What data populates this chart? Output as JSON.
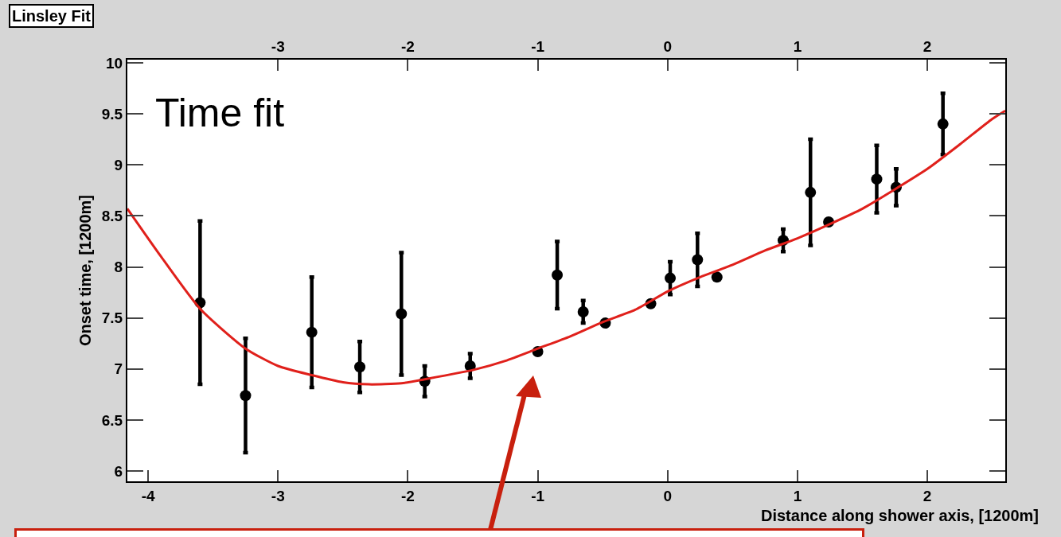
{
  "chart_data": {
    "type": "scatter",
    "title": "Linsley Fit",
    "xlabel": "Distance along shower axis, [1200m]",
    "ylabel": "Onset time, [1200m]",
    "annotations": [
      "Time fit"
    ],
    "xlim": [
      -4.16,
      2.6
    ],
    "xticks": [
      -4,
      -3,
      -2,
      -1,
      0,
      1,
      2
    ],
    "x2lim": [
      -4.16,
      2.6
    ],
    "x2ticks": [
      -3,
      -2,
      -1,
      0,
      1,
      2
    ],
    "ylim": [
      5.9,
      10.03
    ],
    "yticks": [
      6,
      6.5,
      7,
      7.5,
      8,
      8.5,
      9,
      9.5,
      10
    ],
    "grid": false,
    "marker": "circle",
    "series": [
      {
        "color": "#000000",
        "x": [
          -3.6,
          -3.25,
          -2.74,
          -2.37,
          -2.05,
          -1.87,
          -1.52,
          -1.0,
          -0.85,
          -0.65,
          -0.48,
          -0.13,
          0.02,
          0.23,
          0.38,
          0.89,
          1.1,
          1.24,
          1.61,
          1.76,
          2.12
        ],
        "values": [
          7.65,
          6.74,
          7.36,
          7.02,
          7.54,
          6.88,
          7.03,
          7.17,
          7.92,
          7.56,
          7.45,
          7.64,
          7.89,
          8.07,
          7.9,
          8.26,
          8.73,
          8.44,
          8.86,
          8.78,
          9.4
        ],
        "errors": [
          0.8,
          0.56,
          0.54,
          0.25,
          0.6,
          0.15,
          0.12,
          null,
          0.33,
          0.11,
          null,
          null,
          0.16,
          0.26,
          null,
          0.11,
          0.52,
          null,
          0.33,
          0.18,
          0.3
        ]
      },
      {
        "type": "line",
        "color": "#e0201b",
        "marker": "none",
        "line_style": "solid",
        "x": [
          -4.16,
          -3.9,
          -3.6,
          -3.25,
          -3.0,
          -2.74,
          -2.5,
          -2.3,
          -2.05,
          -1.87,
          -1.5,
          -1.25,
          -1.0,
          -0.75,
          -0.5,
          -0.25,
          0,
          0.25,
          0.5,
          0.75,
          1.0,
          1.25,
          1.5,
          1.75,
          2.0,
          2.25,
          2.5,
          2.6
        ],
        "values": [
          8.57,
          8.1,
          7.59,
          7.2,
          7.03,
          6.94,
          6.87,
          6.85,
          6.86,
          6.9,
          6.99,
          7.08,
          7.2,
          7.32,
          7.46,
          7.58,
          7.76,
          7.9,
          8.02,
          8.16,
          8.28,
          8.42,
          8.57,
          8.76,
          8.96,
          9.2,
          9.45,
          9.53
        ]
      }
    ]
  }
}
